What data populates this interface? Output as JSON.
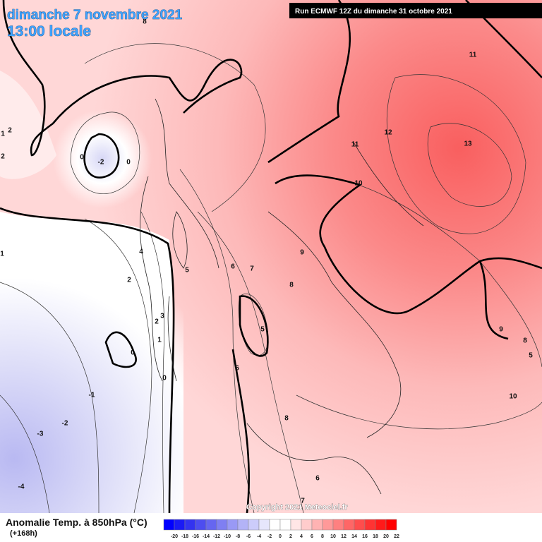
{
  "header": {
    "date": "dimanche 7 novembre 2021",
    "time": "13:00 locale",
    "run": "Run ECMWF 12Z du dimanche 31 octobre 2021"
  },
  "copyright": "Copyright 2021 Meteociel.fr",
  "legend": {
    "title": "Anomalie Temp. à 850hPa (°C)",
    "lead": "(+168h)",
    "ticks": [
      -20,
      -18,
      -16,
      -14,
      -12,
      -10,
      -8,
      -6,
      -4,
      -2,
      0,
      2,
      4,
      6,
      8,
      10,
      12,
      14,
      16,
      18,
      20,
      22
    ],
    "colors": [
      "#0000ff",
      "#1a1af5",
      "#3333f0",
      "#4d4df0",
      "#6666f0",
      "#7f7ff2",
      "#9999f5",
      "#b3b3f7",
      "#ccccfa",
      "#e6e6fc",
      "#ffffff",
      "#ffffff",
      "#ffe6e6",
      "#ffcccc",
      "#ffb3b3",
      "#ff9999",
      "#ff8080",
      "#ff6666",
      "#ff4d4d",
      "#ff3333",
      "#ff1a1a",
      "#ff0000"
    ]
  },
  "contour_labels": [
    "8",
    "11",
    "12",
    "11",
    "13",
    "10",
    "2",
    "1",
    "2",
    "0",
    "-2",
    "0",
    "1",
    "4",
    "5",
    "6",
    "7",
    "9",
    "8",
    "2",
    "3",
    "2",
    "1",
    "0",
    "0",
    "5",
    "6",
    "-1",
    "-2",
    "-3",
    "-4",
    "8",
    "7",
    "6",
    "9",
    "8",
    "5",
    "10"
  ]
}
